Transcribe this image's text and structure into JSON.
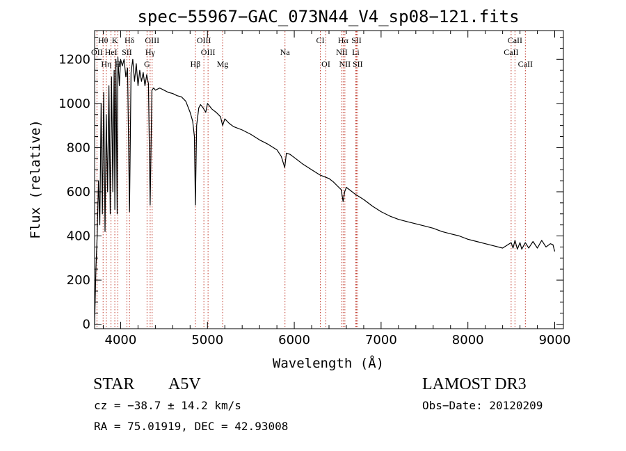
{
  "chart_data": {
    "type": "line",
    "title": "spec−55967−GAC_073N44_V4_sp08−121.fits",
    "xlabel": "Wavelength (Å)",
    "ylabel": "Flux (relative)",
    "xlim": [
      3700,
      9100
    ],
    "ylim": [
      -20,
      1330
    ],
    "xticks": [
      4000,
      5000,
      6000,
      7000,
      8000,
      9000
    ],
    "yticks": [
      0,
      200,
      400,
      600,
      800,
      1000,
      1200
    ],
    "grid": false,
    "series": [
      {
        "name": "spectrum",
        "x": [
          3700,
          3715,
          3730,
          3745,
          3760,
          3775,
          3790,
          3805,
          3820,
          3835,
          3850,
          3865,
          3880,
          3895,
          3910,
          3925,
          3933,
          3945,
          3960,
          3968,
          3985,
          4000,
          4020,
          4040,
          4060,
          4080,
          4102,
          4120,
          4140,
          4160,
          4180,
          4200,
          4220,
          4240,
          4260,
          4280,
          4300,
          4320,
          4340,
          4360,
          4380,
          4400,
          4450,
          4500,
          4550,
          4600,
          4650,
          4700,
          4750,
          4800,
          4830,
          4850,
          4861,
          4875,
          4900,
          4920,
          4950,
          4980,
          5000,
          5050,
          5100,
          5150,
          5175,
          5200,
          5250,
          5300,
          5400,
          5500,
          5600,
          5700,
          5800,
          5850,
          5890,
          5910,
          5950,
          6000,
          6100,
          6200,
          6300,
          6400,
          6450,
          6500,
          6540,
          6563,
          6580,
          6600,
          6650,
          6700,
          6800,
          6900,
          7000,
          7100,
          7200,
          7300,
          7400,
          7500,
          7600,
          7700,
          7800,
          7900,
          8000,
          8100,
          8200,
          8300,
          8400,
          8498,
          8520,
          8542,
          8570,
          8600,
          8620,
          8662,
          8700,
          8750,
          8800,
          8850,
          8900,
          8950,
          8980,
          9000
        ],
        "values": [
          0,
          250,
          400,
          650,
          450,
          1000,
          500,
          1050,
          420,
          950,
          600,
          1080,
          500,
          1120,
          600,
          1150,
          520,
          1200,
          500,
          1210,
          1080,
          1200,
          1170,
          1200,
          1120,
          1160,
          510,
          1140,
          1200,
          1100,
          1180,
          1080,
          1150,
          1100,
          1140,
          1080,
          1130,
          1090,
          540,
          1060,
          1070,
          1060,
          1070,
          1060,
          1050,
          1045,
          1035,
          1030,
          1010,
          960,
          920,
          850,
          540,
          900,
          980,
          995,
          980,
          960,
          1000,
          975,
          960,
          940,
          900,
          930,
          910,
          895,
          880,
          860,
          835,
          815,
          790,
          760,
          710,
          775,
          770,
          755,
          725,
          700,
          675,
          660,
          645,
          625,
          610,
          555,
          600,
          620,
          605,
          590,
          565,
          535,
          510,
          490,
          475,
          465,
          455,
          445,
          435,
          420,
          410,
          400,
          385,
          375,
          365,
          355,
          345,
          370,
          345,
          380,
          340,
          370,
          340,
          370,
          345,
          375,
          345,
          380,
          350,
          365,
          360,
          330
        ]
      }
    ],
    "line_markers": [
      {
        "label": "Hθ",
        "wavelength": 3798,
        "row": 1
      },
      {
        "label": "K",
        "wavelength": 3933,
        "row": 1
      },
      {
        "label": "Hδ",
        "wavelength": 4102,
        "row": 1
      },
      {
        "label": "OIII",
        "wavelength": 4363,
        "row": 1
      },
      {
        "label": "OIII",
        "wavelength": 4959,
        "row": 1
      },
      {
        "label": "CI",
        "wavelength": 6300,
        "row": 1
      },
      {
        "label": "Hα",
        "wavelength": 6563,
        "row": 1
      },
      {
        "label": "SII",
        "wavelength": 6716,
        "row": 1
      },
      {
        "label": "CaII",
        "wavelength": 8542,
        "row": 1
      },
      {
        "label": "OII",
        "wavelength": 3727,
        "row": 2
      },
      {
        "label": "HeI",
        "wavelength": 3889,
        "row": 2
      },
      {
        "label": "SII",
        "wavelength": 4072,
        "row": 2
      },
      {
        "label": "Hγ",
        "wavelength": 4340,
        "row": 2
      },
      {
        "label": "OIII",
        "wavelength": 5007,
        "row": 2
      },
      {
        "label": "Na",
        "wavelength": 5893,
        "row": 2
      },
      {
        "label": "NII",
        "wavelength": 6548,
        "row": 2
      },
      {
        "label": "Li",
        "wavelength": 6708,
        "row": 2
      },
      {
        "label": "CaII",
        "wavelength": 8498,
        "row": 2
      },
      {
        "label": "Hη",
        "wavelength": 3835,
        "row": 3
      },
      {
        "label": "H",
        "wavelength": 3968,
        "row": 3
      },
      {
        "label": "G",
        "wavelength": 4304,
        "row": 3
      },
      {
        "label": "Hβ",
        "wavelength": 4861,
        "row": 3
      },
      {
        "label": "Mg",
        "wavelength": 5175,
        "row": 3
      },
      {
        "label": "OI",
        "wavelength": 6364,
        "row": 3
      },
      {
        "label": "NII",
        "wavelength": 6583,
        "row": 3
      },
      {
        "label": "SII",
        "wavelength": 6731,
        "row": 3
      },
      {
        "label": "CaII",
        "wavelength": 8662,
        "row": 3
      }
    ]
  },
  "info": {
    "object_class": "STAR",
    "subclass": "A5V",
    "survey": "LAMOST DR3",
    "redshift": "cz = −38.7 ± 14.2 km/s",
    "obs_date": "Obs−Date: 20120209",
    "coords": "RA =  75.01919, DEC =  42.93008"
  }
}
